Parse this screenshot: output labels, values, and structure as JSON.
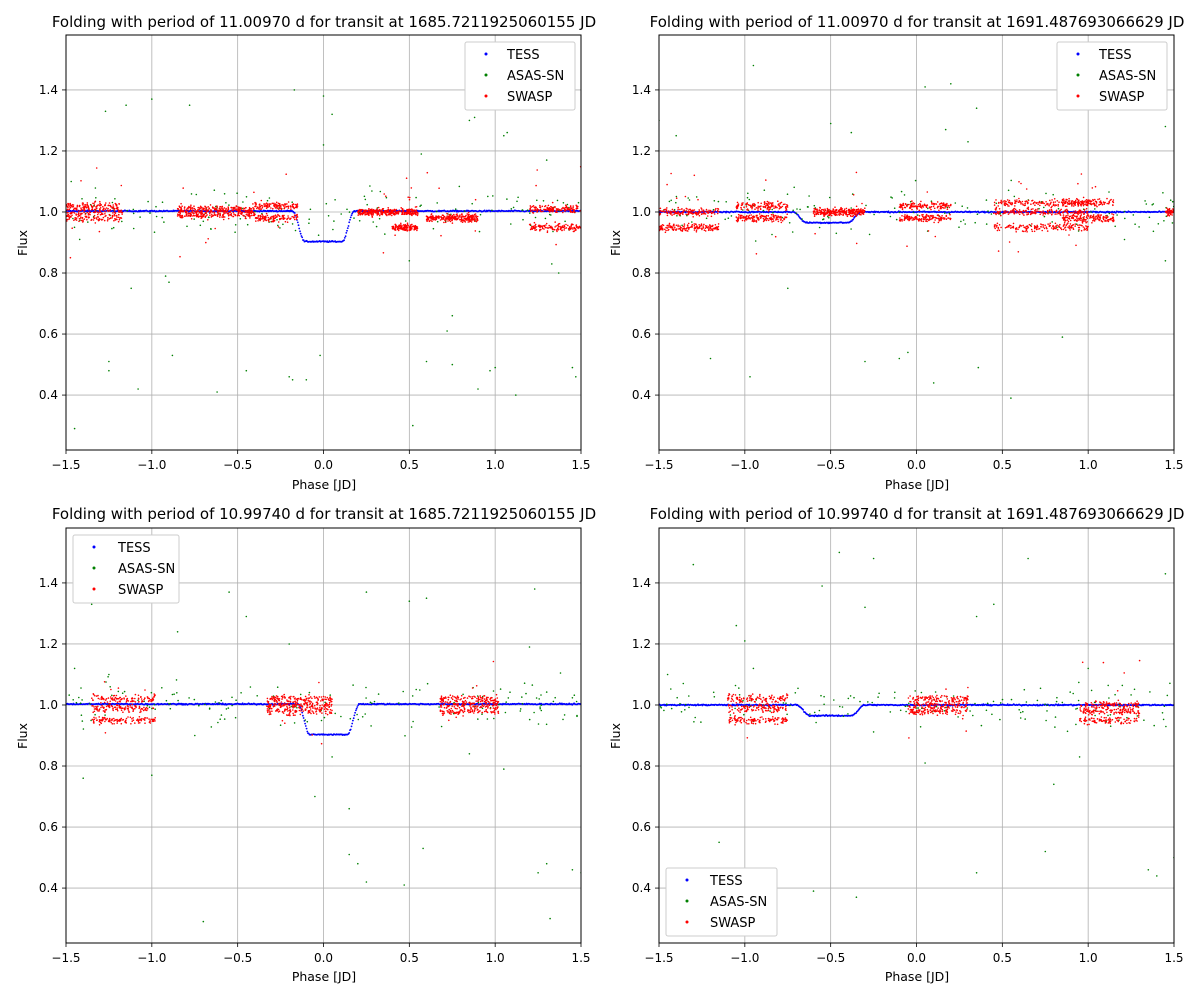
{
  "figure": {
    "background": "#ffffff"
  },
  "series_styles": [
    {
      "name": "TESS",
      "color": "#0000ff"
    },
    {
      "name": "ASAS-SN",
      "color": "#008000"
    },
    {
      "name": "SWASP",
      "color": "#ff0000"
    }
  ],
  "chart_data": [
    {
      "type": "scatter",
      "title": "Folding with period of 11.00970 d for transit at 1685.7211925060155 JD",
      "xlabel": "Phase [JD]",
      "ylabel": "Flux",
      "xlim": [
        -1.5,
        1.5
      ],
      "ylim": [
        0.22,
        1.58
      ],
      "xticks": [
        "-1.5",
        "-1.0",
        "-0.5",
        "0.0",
        "0.5",
        "1.0",
        "1.5"
      ],
      "yticks": [
        "0.4",
        "0.6",
        "0.8",
        "1.0",
        "1.2",
        "1.4"
      ],
      "grid": true,
      "legend": "upper right",
      "series": [
        {
          "name": "TESS",
          "color": "#0000ff",
          "model": {
            "baseline": 1.003,
            "transits": [
              {
                "center": 0.0,
                "depth": 0.1,
                "halfwidth": 0.18
              }
            ]
          }
        },
        {
          "name": "ASAS-SN",
          "color": "#008000",
          "outliers": [
            [
              -1.47,
              1.1
            ],
            [
              -1.45,
              0.29
            ],
            [
              -1.42,
              0.91
            ],
            [
              -1.27,
              1.33
            ],
            [
              -1.25,
              0.51
            ],
            [
              -1.25,
              0.48
            ],
            [
              -1.15,
              1.35
            ],
            [
              -1.12,
              0.75
            ],
            [
              -1.08,
              0.42
            ],
            [
              -1.0,
              1.37
            ],
            [
              -0.92,
              0.79
            ],
            [
              -0.9,
              0.77
            ],
            [
              -0.88,
              0.53
            ],
            [
              -0.78,
              1.35
            ],
            [
              -0.62,
              0.41
            ],
            [
              -0.45,
              0.48
            ],
            [
              -0.2,
              0.46
            ],
            [
              -0.17,
              1.4
            ],
            [
              -0.18,
              0.45
            ],
            [
              -0.1,
              0.45
            ],
            [
              -0.02,
              0.53
            ],
            [
              0.0,
              1.38
            ],
            [
              0.0,
              1.22
            ],
            [
              0.05,
              1.32
            ],
            [
              0.5,
              0.84
            ],
            [
              0.52,
              0.3
            ],
            [
              0.57,
              1.19
            ],
            [
              0.6,
              0.51
            ],
            [
              0.72,
              0.61
            ],
            [
              0.75,
              0.66
            ],
            [
              0.75,
              0.5
            ],
            [
              0.85,
              1.3
            ],
            [
              0.88,
              1.31
            ],
            [
              0.9,
              0.42
            ],
            [
              0.97,
              0.48
            ],
            [
              1.0,
              0.49
            ],
            [
              1.05,
              1.25
            ],
            [
              1.07,
              1.26
            ],
            [
              1.12,
              0.4
            ],
            [
              1.3,
              1.17
            ],
            [
              1.33,
              0.83
            ],
            [
              1.37,
              0.8
            ],
            [
              1.45,
              0.49
            ],
            [
              1.47,
              0.46
            ]
          ]
        },
        {
          "name": "SWASP",
          "color": "#ff0000",
          "clusters": [
            {
              "x": [
                -1.5,
                -1.17
              ],
              "levels": [
                1.0,
                0.98,
                1.02
              ]
            },
            {
              "x": [
                -0.85,
                -0.4
              ],
              "levels": [
                1.0,
                0.99,
                1.01
              ]
            },
            {
              "x": [
                -0.4,
                -0.15
              ],
              "levels": [
                0.98,
                1.02
              ]
            },
            {
              "x": [
                0.2,
                0.55
              ],
              "levels": [
                1.0
              ]
            },
            {
              "x": [
                0.4,
                0.55
              ],
              "levels": [
                0.95
              ]
            },
            {
              "x": [
                0.6,
                0.9
              ],
              "levels": [
                0.98
              ]
            },
            {
              "x": [
                1.2,
                1.5
              ],
              "levels": [
                1.01,
                0.95
              ]
            }
          ]
        }
      ]
    },
    {
      "type": "scatter",
      "title": "Folding with period of 11.00970 d for transit at 1691.487693066629 JD",
      "xlabel": "Phase [JD]",
      "ylabel": "Flux",
      "xlim": [
        -1.5,
        1.5
      ],
      "ylim": [
        0.22,
        1.58
      ],
      "xticks": [
        "-1.5",
        "-1.0",
        "-0.5",
        "0.0",
        "0.5",
        "1.0",
        "1.5"
      ],
      "yticks": [
        "0.4",
        "0.6",
        "0.8",
        "1.0",
        "1.2",
        "1.4"
      ],
      "grid": true,
      "legend": "upper right",
      "series": [
        {
          "name": "TESS",
          "color": "#0000ff",
          "model": {
            "baseline": 1.0,
            "transits": [
              {
                "center": -0.52,
                "depth": 0.035,
                "halfwidth": 0.2
              }
            ]
          }
        },
        {
          "name": "ASAS-SN",
          "color": "#008000",
          "outliers": [
            [
              -1.5,
              1.3
            ],
            [
              -1.4,
              1.25
            ],
            [
              -1.2,
              0.52
            ],
            [
              -0.97,
              0.46
            ],
            [
              -0.95,
              1.48
            ],
            [
              -0.75,
              0.75
            ],
            [
              -0.5,
              1.29
            ],
            [
              -0.38,
              1.26
            ],
            [
              -0.3,
              0.51
            ],
            [
              -0.1,
              0.52
            ],
            [
              -0.05,
              0.54
            ],
            [
              0.05,
              1.41
            ],
            [
              0.1,
              0.44
            ],
            [
              0.17,
              1.27
            ],
            [
              0.2,
              1.42
            ],
            [
              0.3,
              1.23
            ],
            [
              0.35,
              1.34
            ],
            [
              0.36,
              0.49
            ],
            [
              0.55,
              0.39
            ],
            [
              0.85,
              0.59
            ],
            [
              1.15,
              1.38
            ],
            [
              1.45,
              1.28
            ],
            [
              1.45,
              0.84
            ]
          ]
        },
        {
          "name": "SWASP",
          "color": "#ff0000",
          "clusters": [
            {
              "x": [
                -1.5,
                -1.15
              ],
              "levels": [
                1.0,
                0.95
              ]
            },
            {
              "x": [
                -1.05,
                -0.75
              ],
              "levels": [
                1.02,
                0.98
              ]
            },
            {
              "x": [
                -0.6,
                -0.3
              ],
              "levels": [
                1.0
              ]
            },
            {
              "x": [
                -0.1,
                0.2
              ],
              "levels": [
                0.98,
                1.02
              ]
            },
            {
              "x": [
                0.45,
                1.0
              ],
              "levels": [
                1.0,
                0.95,
                1.03
              ]
            },
            {
              "x": [
                0.85,
                1.15
              ],
              "levels": [
                1.03,
                0.98
              ]
            },
            {
              "x": [
                1.45,
                1.5
              ],
              "levels": [
                1.0
              ]
            }
          ]
        }
      ]
    },
    {
      "type": "scatter",
      "title": "Folding with period of 10.99740 d for transit at 1685.7211925060155 JD",
      "xlabel": "Phase [JD]",
      "ylabel": "Flux",
      "xlim": [
        -1.5,
        1.5
      ],
      "ylim": [
        0.22,
        1.58
      ],
      "xticks": [
        "-1.5",
        "-1.0",
        "-0.5",
        "0.0",
        "0.5",
        "1.0",
        "1.5"
      ],
      "yticks": [
        "0.4",
        "0.6",
        "0.8",
        "1.0",
        "1.2",
        "1.4"
      ],
      "grid": true,
      "legend": "upper left",
      "series": [
        {
          "name": "TESS",
          "color": "#0000ff",
          "model": {
            "baseline": 1.003,
            "transits": [
              {
                "center": 0.03,
                "depth": 0.1,
                "halfwidth": 0.18
              }
            ]
          }
        },
        {
          "name": "ASAS-SN",
          "color": "#008000",
          "outliers": [
            [
              -1.45,
              1.12
            ],
            [
              -1.4,
              0.76
            ],
            [
              -1.35,
              1.33
            ],
            [
              -1.25,
              1.1
            ],
            [
              -1.0,
              0.77
            ],
            [
              -0.85,
              1.48
            ],
            [
              -0.85,
              1.24
            ],
            [
              -0.75,
              0.9
            ],
            [
              -0.7,
              0.29
            ],
            [
              -0.55,
              1.37
            ],
            [
              -0.45,
              1.29
            ],
            [
              -0.2,
              1.2
            ],
            [
              -0.05,
              0.7
            ],
            [
              0.05,
              0.83
            ],
            [
              0.15,
              0.66
            ],
            [
              0.15,
              0.51
            ],
            [
              0.2,
              0.48
            ],
            [
              0.25,
              0.42
            ],
            [
              0.25,
              1.37
            ],
            [
              0.47,
              0.41
            ],
            [
              0.5,
              1.34
            ],
            [
              0.58,
              0.53
            ],
            [
              0.6,
              1.35
            ],
            [
              0.85,
              0.84
            ],
            [
              1.05,
              0.79
            ],
            [
              1.2,
              1.19
            ],
            [
              1.23,
              1.38
            ],
            [
              1.25,
              0.45
            ],
            [
              1.3,
              0.48
            ],
            [
              1.32,
              0.3
            ],
            [
              1.45,
              0.46
            ],
            [
              1.5,
              0.45
            ]
          ]
        },
        {
          "name": "SWASP",
          "color": "#ff0000",
          "clusters": [
            {
              "x": [
                -1.35,
                -0.98
              ],
              "levels": [
                1.02,
                0.99,
                0.95
              ]
            },
            {
              "x": [
                -0.33,
                0.05
              ],
              "levels": [
                1.0,
                0.98,
                1.02
              ]
            },
            {
              "x": [
                0.68,
                1.02
              ],
              "levels": [
                1.0,
                0.98,
                1.02
              ]
            }
          ]
        }
      ]
    },
    {
      "type": "scatter",
      "title": "Folding with period of 10.99740 d for transit at 1691.487693066629 JD",
      "xlabel": "Phase [JD]",
      "ylabel": "Flux",
      "xlim": [
        -1.5,
        1.5
      ],
      "ylim": [
        0.22,
        1.58
      ],
      "xticks": [
        "-1.5",
        "-1.0",
        "-0.5",
        "0.0",
        "0.5",
        "1.0",
        "1.5"
      ],
      "yticks": [
        "0.4",
        "0.6",
        "0.8",
        "1.0",
        "1.2",
        "1.4"
      ],
      "grid": true,
      "legend": "lower left",
      "series": [
        {
          "name": "TESS",
          "color": "#0000ff",
          "model": {
            "baseline": 1.0,
            "transits": [
              {
                "center": -0.5,
                "depth": 0.035,
                "halfwidth": 0.2
              }
            ]
          }
        },
        {
          "name": "ASAS-SN",
          "color": "#008000",
          "outliers": [
            [
              -1.45,
              1.1
            ],
            [
              -1.3,
              1.46
            ],
            [
              -1.15,
              0.55
            ],
            [
              -1.05,
              1.26
            ],
            [
              -1.0,
              1.21
            ],
            [
              -0.95,
              1.12
            ],
            [
              -0.6,
              0.39
            ],
            [
              -0.55,
              1.39
            ],
            [
              -0.45,
              1.5
            ],
            [
              -0.35,
              0.37
            ],
            [
              -0.3,
              1.32
            ],
            [
              -0.25,
              1.48
            ],
            [
              0.05,
              0.81
            ],
            [
              0.35,
              1.29
            ],
            [
              0.35,
              0.45
            ],
            [
              0.45,
              1.33
            ],
            [
              0.65,
              1.48
            ],
            [
              0.75,
              0.52
            ],
            [
              0.8,
              0.74
            ],
            [
              0.95,
              0.83
            ],
            [
              1.0,
              1.12
            ],
            [
              1.35,
              0.46
            ],
            [
              1.4,
              0.44
            ],
            [
              1.45,
              1.43
            ],
            [
              1.5,
              0.5
            ]
          ]
        },
        {
          "name": "SWASP",
          "color": "#ff0000",
          "clusters": [
            {
              "x": [
                -1.1,
                -0.75
              ],
              "levels": [
                1.02,
                0.99,
                0.95
              ]
            },
            {
              "x": [
                -0.05,
                0.3
              ],
              "levels": [
                1.0,
                0.98,
                1.02
              ]
            },
            {
              "x": [
                0.95,
                1.3
              ],
              "levels": [
                1.0,
                0.98,
                0.95
              ]
            }
          ]
        }
      ]
    }
  ]
}
